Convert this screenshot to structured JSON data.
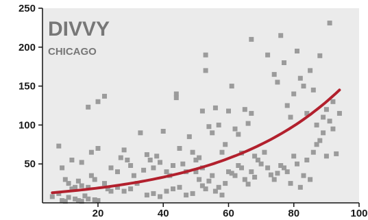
{
  "chart_data": {
    "type": "scatter",
    "title": "DIVVY",
    "subtitle": "CHICAGO",
    "xlabel": "",
    "ylabel": "",
    "xlim": [
      3,
      100
    ],
    "ylim": [
      0,
      250
    ],
    "x_ticks": [
      20,
      40,
      60,
      80,
      100
    ],
    "y_ticks": [
      50,
      100,
      150,
      200,
      250
    ],
    "grid": false,
    "colors": {
      "background": "#ebebeb",
      "points": "#9b9b9b",
      "curve": "#b2202d",
      "axis": "#111111",
      "title": "#777777"
    },
    "series": [
      {
        "values": [
          [
            6,
            8
          ],
          [
            8,
            12
          ],
          [
            9,
            3
          ],
          [
            10,
            2
          ],
          [
            11,
            7
          ],
          [
            13,
            5
          ],
          [
            14,
            3
          ],
          [
            15,
            2
          ],
          [
            16,
            9
          ],
          [
            17,
            5
          ],
          [
            19,
            4
          ],
          [
            20,
            3
          ],
          [
            8,
            73
          ],
          [
            9,
            45
          ],
          [
            10,
            30
          ],
          [
            11,
            25
          ],
          [
            12,
            18
          ],
          [
            13,
            20
          ],
          [
            14,
            28
          ],
          [
            15,
            22
          ],
          [
            17,
            20
          ],
          [
            18,
            35
          ],
          [
            19,
            30
          ],
          [
            12,
            55
          ],
          [
            15,
            52
          ],
          [
            18,
            65
          ],
          [
            20,
            70
          ],
          [
            22,
            25
          ],
          [
            23,
            18
          ],
          [
            24,
            15
          ],
          [
            26,
            20
          ],
          [
            28,
            15
          ],
          [
            30,
            18
          ],
          [
            17,
            123
          ],
          [
            20,
            130
          ],
          [
            22,
            137
          ],
          [
            24,
            45
          ],
          [
            26,
            40
          ],
          [
            27,
            58
          ],
          [
            28,
            68
          ],
          [
            29,
            55
          ],
          [
            30,
            48
          ],
          [
            31,
            35
          ],
          [
            32,
            25
          ],
          [
            33,
            90
          ],
          [
            34,
            42
          ],
          [
            35,
            62
          ],
          [
            36,
            55
          ],
          [
            37,
            45
          ],
          [
            38,
            60
          ],
          [
            39,
            52
          ],
          [
            40,
            92
          ],
          [
            41,
            40
          ],
          [
            42,
            35
          ],
          [
            43,
            48
          ],
          [
            44,
            135
          ],
          [
            44,
            140
          ],
          [
            45,
            70
          ],
          [
            46,
            50
          ],
          [
            47,
            40
          ],
          [
            48,
            85
          ],
          [
            49,
            65
          ],
          [
            50,
            55
          ],
          [
            51,
            58
          ],
          [
            52,
            45
          ],
          [
            52,
            118
          ],
          [
            53,
            170
          ],
          [
            53,
            190
          ],
          [
            54,
            98
          ],
          [
            55,
            90
          ],
          [
            56,
            122
          ],
          [
            57,
            100
          ],
          [
            58,
            65
          ],
          [
            59,
            75
          ],
          [
            60,
            118
          ],
          [
            61,
            150
          ],
          [
            62,
            95
          ],
          [
            63,
            88
          ],
          [
            64,
            64
          ],
          [
            65,
            120
          ],
          [
            66,
            102
          ],
          [
            67,
            115
          ],
          [
            67,
            210
          ],
          [
            68,
            60
          ],
          [
            50,
            40
          ],
          [
            51,
            30
          ],
          [
            52,
            22
          ],
          [
            53,
            18
          ],
          [
            54,
            28
          ],
          [
            55,
            35
          ],
          [
            56,
            15
          ],
          [
            57,
            20
          ],
          [
            58,
            10
          ],
          [
            59,
            25
          ],
          [
            60,
            40
          ],
          [
            61,
            38
          ],
          [
            62,
            35
          ],
          [
            63,
            48
          ],
          [
            64,
            45
          ],
          [
            65,
            30
          ],
          [
            66,
            24
          ],
          [
            67,
            40
          ],
          [
            68,
            33
          ],
          [
            69,
            55
          ],
          [
            70,
            50
          ],
          [
            71,
            65
          ],
          [
            72,
            45
          ],
          [
            73,
            36
          ],
          [
            74,
            30
          ],
          [
            75,
            38
          ],
          [
            76,
            48
          ],
          [
            77,
            45
          ],
          [
            78,
            40
          ],
          [
            79,
            25
          ],
          [
            72,
            190
          ],
          [
            74,
            165
          ],
          [
            75,
            155
          ],
          [
            76,
            215
          ],
          [
            77,
            180
          ],
          [
            78,
            125
          ],
          [
            79,
            110
          ],
          [
            80,
            140
          ],
          [
            81,
            195
          ],
          [
            82,
            160
          ],
          [
            83,
            150
          ],
          [
            84,
            115
          ],
          [
            85,
            170
          ],
          [
            86,
            145
          ],
          [
            87,
            100
          ],
          [
            88,
            189
          ],
          [
            89,
            110
          ],
          [
            90,
            60
          ],
          [
            91,
            231
          ],
          [
            92,
            130
          ],
          [
            93,
            63
          ],
          [
            94,
            115
          ],
          [
            80,
            60
          ],
          [
            81,
            50
          ],
          [
            82,
            20
          ],
          [
            83,
            35
          ],
          [
            84,
            55
          ],
          [
            85,
            30
          ],
          [
            86,
            65
          ],
          [
            87,
            75
          ],
          [
            88,
            80
          ],
          [
            89,
            90
          ],
          [
            90,
            120
          ],
          [
            91,
            105
          ],
          [
            92,
            95
          ],
          [
            35,
            10
          ],
          [
            37,
            12
          ],
          [
            39,
            8
          ],
          [
            41,
            15
          ],
          [
            43,
            18
          ],
          [
            45,
            20
          ],
          [
            47,
            10
          ],
          [
            49,
            12
          ]
        ]
      }
    ],
    "trend": {
      "type": "exponential",
      "x": [
        6,
        20,
        40,
        60,
        80,
        94
      ],
      "y": [
        13,
        20,
        33,
        57,
        98,
        145
      ]
    }
  }
}
